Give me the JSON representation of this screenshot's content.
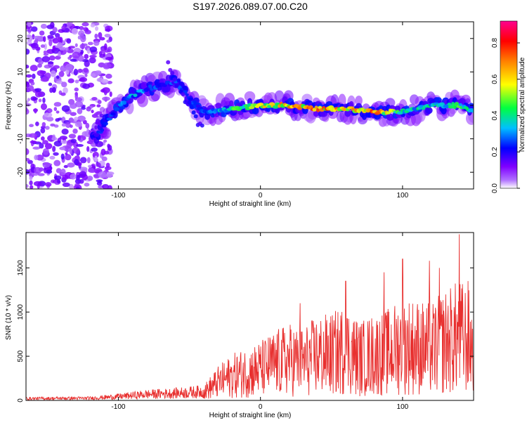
{
  "title": "S197.2026.089.07.00.C20",
  "chart_data": [
    {
      "type": "heatmap",
      "xlabel": "Height of straight line (km)",
      "ylabel": "Frequency (Hz)",
      "xlim": [
        -165,
        150
      ],
      "ylim": [
        -25,
        25
      ],
      "xticks": [
        -100,
        0,
        100
      ],
      "xtick_labels": [
        "-100",
        "0",
        "100"
      ],
      "yticks": [
        -20,
        -10,
        0,
        10,
        20
      ],
      "ytick_labels": [
        "-20",
        "-10",
        "0",
        "10",
        "20"
      ],
      "colorbar": {
        "label": "Normalized spectral amplitude",
        "range": [
          0,
          0.92
        ],
        "ticks": [
          0,
          0.2,
          0.4,
          0.6,
          0.8
        ],
        "tick_labels": [
          "0.0",
          "0.2",
          "0.4",
          "0.6",
          "0.8"
        ],
        "colors": [
          "#ffffff",
          "#7f00ff",
          "#0000ff",
          "#00ffff",
          "#00ff00",
          "#ffff00",
          "#ff7f00",
          "#ff0000",
          "#ff0080"
        ]
      },
      "ridge": [
        {
          "x": -115,
          "y": -9,
          "a": 0.3
        },
        {
          "x": -100,
          "y": 0,
          "a": 0.35
        },
        {
          "x": -90,
          "y": 3,
          "a": 0.4
        },
        {
          "x": -80,
          "y": 5,
          "a": 0.35
        },
        {
          "x": -70,
          "y": 6,
          "a": 0.3
        },
        {
          "x": -60,
          "y": 7,
          "a": 0.3
        },
        {
          "x": -50,
          "y": 2,
          "a": 0.3
        },
        {
          "x": -40,
          "y": -2,
          "a": 0.3
        },
        {
          "x": -20,
          "y": -1,
          "a": 0.5
        },
        {
          "x": 0,
          "y": 0,
          "a": 0.7
        },
        {
          "x": 20,
          "y": 0,
          "a": 0.8
        },
        {
          "x": 40,
          "y": -1,
          "a": 0.8
        },
        {
          "x": 60,
          "y": -1,
          "a": 0.85
        },
        {
          "x": 80,
          "y": -2,
          "a": 0.85
        },
        {
          "x": 100,
          "y": -2,
          "a": 0.5
        },
        {
          "x": 120,
          "y": 0,
          "a": 0.45
        },
        {
          "x": 140,
          "y": 0,
          "a": 0.55
        },
        {
          "x": 150,
          "y": -2,
          "a": 0.4
        }
      ]
    },
    {
      "type": "line",
      "xlabel": "Height of straight line (km)",
      "ylabel": "SNR (10 * v/v)",
      "xlim": [
        -165,
        150
      ],
      "ylim": [
        0,
        1900
      ],
      "xticks": [
        -100,
        0,
        100
      ],
      "xtick_labels": [
        "-100",
        "0",
        "100"
      ],
      "yticks": [
        0,
        500,
        1000,
        1500
      ],
      "ytick_labels": [
        "0",
        "500",
        "1000",
        "1500"
      ],
      "color": "#e8302f",
      "envelope": {
        "x": [
          -165,
          -120,
          -100,
          -80,
          -60,
          -40,
          -30,
          -20,
          -10,
          0,
          10,
          20,
          30,
          40,
          50,
          60,
          70,
          80,
          90,
          100,
          110,
          120,
          130,
          140,
          145,
          150
        ],
        "y": [
          35,
          40,
          70,
          110,
          130,
          160,
          350,
          480,
          550,
          620,
          720,
          800,
          760,
          880,
          900,
          1000,
          820,
          900,
          950,
          1080,
          1050,
          1000,
          1150,
          1250,
          1200,
          1050
        ]
      },
      "peaks": [
        {
          "x": 28,
          "y": 1100
        },
        {
          "x": 60,
          "y": 1350
        },
        {
          "x": 87,
          "y": 1450
        },
        {
          "x": 100,
          "y": 1600
        },
        {
          "x": 119,
          "y": 1580
        },
        {
          "x": 126,
          "y": 1500
        },
        {
          "x": 140,
          "y": 1880
        },
        {
          "x": 146,
          "y": 1350
        }
      ]
    }
  ]
}
